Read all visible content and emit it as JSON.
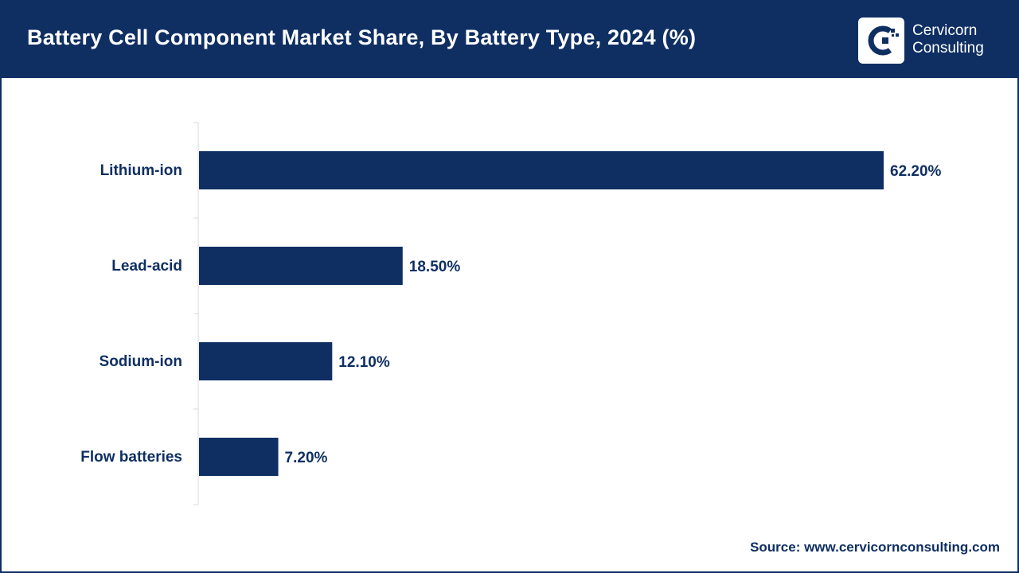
{
  "header": {
    "title": "Battery Cell Component Market Share, By Battery Type, 2024 (%)",
    "brand": {
      "line1": "Cervicorn",
      "line2": "Consulting",
      "logo_icon": "cervicorn-logo-icon"
    }
  },
  "colors": {
    "primary": "#0f2f63",
    "background": "#ffffff",
    "axis": "#d9d9d9"
  },
  "chart_data": {
    "type": "bar",
    "orientation": "horizontal",
    "title": "Battery Cell Component Market Share, By Battery Type, 2024 (%)",
    "categories": [
      "Lithium-ion",
      "Lead-acid",
      "Sodium-ion",
      "Flow batteries"
    ],
    "values": [
      62.2,
      18.5,
      12.1,
      7.2
    ],
    "data_labels": [
      "62.20%",
      "18.50%",
      "12.10%",
      "7.20%"
    ],
    "xlabel": "",
    "ylabel": "",
    "xlim": [
      0,
      62.2
    ],
    "grid": false,
    "legend": "none"
  },
  "footer": {
    "source": "Source: www.cervicornconsulting.com"
  }
}
